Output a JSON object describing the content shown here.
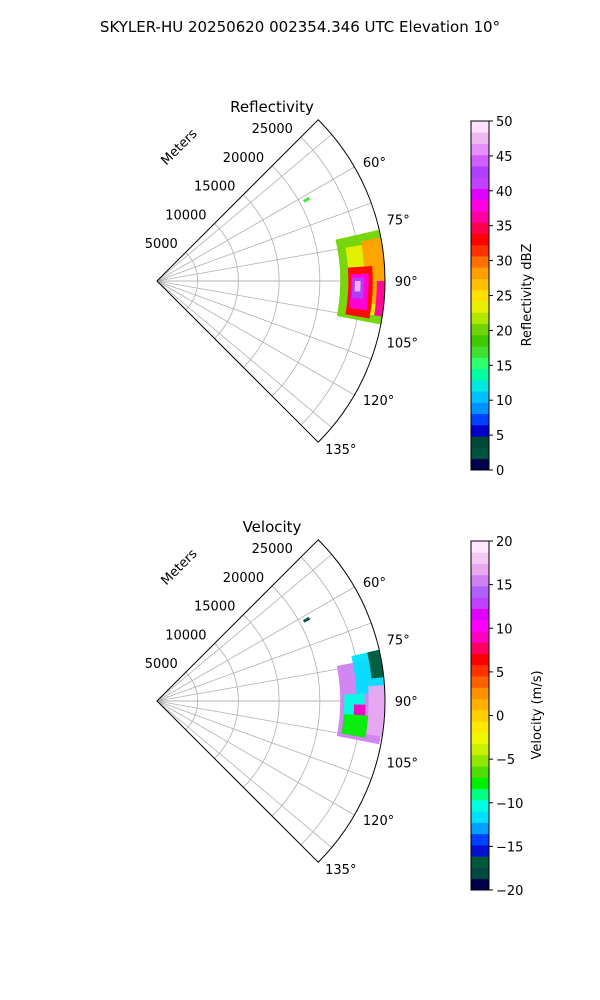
{
  "figure_title": "SKYLER-HU  20250620  002354.346 UTC Elevation 10°",
  "chart_data": [
    {
      "type": "polar-sector",
      "title": "Reflectivity",
      "range_axis_label": "Meters",
      "range_ticks": [
        "5000",
        "10000",
        "15000",
        "20000",
        "25000"
      ],
      "range_values": [
        5000,
        10000,
        15000,
        20000,
        25000
      ],
      "range_max": 28000,
      "azimuth_ticks": [
        "60°",
        "75°",
        "90°",
        "105°",
        "120°",
        "135°"
      ],
      "azimuth_values": [
        60,
        75,
        90,
        105,
        120,
        135
      ],
      "azimuth_range": [
        45,
        135
      ],
      "colorbar": {
        "label": "Reflectivity dBZ",
        "min": 0,
        "max": 50,
        "ticks": [
          "0",
          "5",
          "10",
          "15",
          "20",
          "25",
          "30",
          "35",
          "40",
          "45",
          "50"
        ],
        "tick_values": [
          0,
          5,
          10,
          15,
          20,
          25,
          30,
          35,
          40,
          45,
          50
        ],
        "colors": [
          "#00004a",
          "#005040",
          "#004838",
          "#0000c8",
          "#0040ff",
          "#0090ff",
          "#00c0ff",
          "#00e8e0",
          "#00ffa0",
          "#30ff70",
          "#40e030",
          "#40c800",
          "#70d400",
          "#b0e800",
          "#e8f000",
          "#ffe000",
          "#ffc000",
          "#ffa000",
          "#ff7000",
          "#ff3000",
          "#ff0000",
          "#ff0050",
          "#ff00a0",
          "#ff00e0",
          "#e000ff",
          "#c040ff",
          "#b040ff",
          "#d060ff",
          "#e890ff",
          "#f0b8f0",
          "#ffe0ff"
        ]
      },
      "echo_regions": [
        {
          "az": [
            77,
            101
          ],
          "r": [
            22500,
            28000
          ],
          "value": 20
        },
        {
          "az": [
            80,
            99
          ],
          "r": [
            23500,
            27800
          ],
          "value": 23
        },
        {
          "az": [
            79,
            96
          ],
          "r": [
            25500,
            28000
          ],
          "value": 28
        },
        {
          "az": [
            86,
            100
          ],
          "r": [
            23500,
            26500
          ],
          "value": 33
        },
        {
          "az": [
            88,
            98
          ],
          "r": [
            23800,
            26000
          ],
          "value": 38
        },
        {
          "az": [
            89,
            95
          ],
          "r": [
            24000,
            25400
          ],
          "value": 42
        },
        {
          "az": [
            90,
            93
          ],
          "r": [
            24300,
            25000
          ],
          "value": 47
        },
        {
          "az": [
            90,
            99
          ],
          "r": [
            27000,
            28000
          ],
          "value": 36
        },
        {
          "az": [
            61,
            62
          ],
          "r": [
            20500,
            21300
          ],
          "value": 17
        }
      ]
    },
    {
      "type": "polar-sector",
      "title": "Velocity",
      "range_axis_label": "Meters",
      "range_ticks": [
        "5000",
        "10000",
        "15000",
        "20000",
        "25000"
      ],
      "range_values": [
        5000,
        10000,
        15000,
        20000,
        25000
      ],
      "range_max": 28000,
      "azimuth_ticks": [
        "60°",
        "75°",
        "90°",
        "105°",
        "120°",
        "135°"
      ],
      "azimuth_values": [
        60,
        75,
        90,
        105,
        120,
        135
      ],
      "azimuth_range": [
        45,
        135
      ],
      "colorbar": {
        "label": "Velocity (m/s)",
        "min": -20,
        "max": 20,
        "ticks": [
          "−20",
          "−15",
          "−10",
          "−5",
          "0",
          "5",
          "10",
          "15",
          "20"
        ],
        "tick_values": [
          -20,
          -15,
          -10,
          -5,
          0,
          5,
          10,
          15,
          20
        ],
        "colors": [
          "#00004a",
          "#004840",
          "#005838",
          "#0010d0",
          "#0040ff",
          "#00a0ff",
          "#00e0ff",
          "#00ffe0",
          "#00ff80",
          "#00f000",
          "#50e000",
          "#90e800",
          "#c8f000",
          "#f0f800",
          "#ffe800",
          "#ffd000",
          "#ffb000",
          "#ff9000",
          "#ff6000",
          "#ff3000",
          "#ff0000",
          "#ff0060",
          "#ff00c0",
          "#ff00ff",
          "#e000ff",
          "#c040ff",
          "#b060ff",
          "#d080f0",
          "#e8a8f0",
          "#f4c8f4",
          "#ffe8ff"
        ]
      },
      "echo_regions": [
        {
          "az": [
            79,
            101
          ],
          "r": [
            22500,
            27800
          ],
          "value": 15
        },
        {
          "az": [
            77,
            88
          ],
          "r": [
            24500,
            28000
          ],
          "value": -12
        },
        {
          "az": [
            77,
            84
          ],
          "r": [
            26500,
            28000
          ],
          "value": -17
        },
        {
          "az": [
            88,
            96
          ],
          "r": [
            23000,
            25500
          ],
          "value": -10
        },
        {
          "az": [
            91,
            94
          ],
          "r": [
            24200,
            25600
          ],
          "value": 9
        },
        {
          "az": [
            94,
            100
          ],
          "r": [
            23000,
            26000
          ],
          "value": -8
        },
        {
          "az": [
            86,
            99
          ],
          "r": [
            26000,
            28000
          ],
          "value": 17
        },
        {
          "az": [
            61,
            62
          ],
          "r": [
            20500,
            21300
          ],
          "value": -18
        }
      ]
    }
  ]
}
